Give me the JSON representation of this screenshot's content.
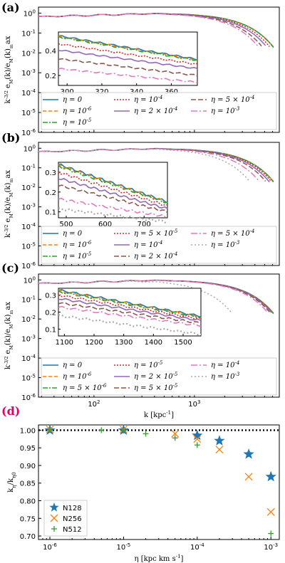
{
  "colors": {
    "eta0": "#1f77b4",
    "eta1": "#ff7f0e",
    "eta2": "#2ca02c",
    "eta3": "#d62728",
    "eta4": "#9467bd",
    "eta5": "#8c564b",
    "eta6": "#e377c2",
    "eta7": "#aaaaaa",
    "panel_d_label": "#e0006a"
  },
  "chart_data": [
    {
      "type": "line",
      "panel_label": "(a)",
      "ylabel": "k^{-3/2} e_M(k)/e_M(k)_max",
      "xscale": "log",
      "yscale": "log",
      "xlim": [
        28,
        7000
      ],
      "ylim": [
        1e-06,
        2
      ],
      "y_ticks": [
        "10^{-6}",
        "10^{-5}",
        "10^{-4}",
        "10^{-3}",
        "10^{-2}",
        "10^{-1}",
        "10^{0}"
      ],
      "legend": [
        "η = 0",
        "η = 10^{-6}",
        "η = 10^{-5}",
        "η = 10^{-4}",
        "η = 2 × 10^{-4}",
        "η = 5 × 10^{-4}",
        "η = 10^{-3}"
      ],
      "series_styles": [
        {
          "color": "eta0",
          "dash": ""
        },
        {
          "color": "eta1",
          "dash": "5,3"
        },
        {
          "color": "eta2",
          "dash": "7,2,2,2"
        },
        {
          "color": "eta3",
          "dash": "2,2"
        },
        {
          "color": "eta4",
          "dash": ""
        },
        {
          "color": "eta5",
          "dash": "7,3"
        },
        {
          "color": "eta6",
          "dash": "9,3,2,3"
        }
      ],
      "cutoffs": [
        6200,
        6200,
        6150,
        5700,
        5300,
        4800,
        4400
      ],
      "inset": {
        "xlim": [
          295,
          375
        ],
        "ylim": [
          0.12,
          0.55
        ],
        "x_ticks": [
          300,
          320,
          340,
          360
        ],
        "y_ticks": [
          0.2,
          0.4
        ],
        "series": [
          [
            0.52,
            0.33
          ],
          [
            0.515,
            0.325
          ],
          [
            0.51,
            0.32
          ],
          [
            0.455,
            0.29
          ],
          [
            0.405,
            0.255
          ],
          [
            0.335,
            0.2
          ],
          [
            0.255,
            0.145
          ]
        ]
      }
    },
    {
      "type": "line",
      "panel_label": "(b)",
      "ylabel": "k^{-3/2} e_M(k)/e_M(k)_max",
      "xscale": "log",
      "yscale": "log",
      "xlim": [
        28,
        7000
      ],
      "ylim": [
        1e-06,
        2
      ],
      "y_ticks": [
        "10^{-6}",
        "10^{-5}",
        "10^{-4}",
        "10^{-3}",
        "10^{-2}",
        "10^{-1}",
        "10^{0}"
      ],
      "legend": [
        "η = 0",
        "η = 10^{-6}",
        "η = 10^{-5}",
        "η = 5 × 10^{-5}",
        "η = 10^{-4}",
        "η = 2 × 10^{-4}",
        "η = 5 × 10^{-4}",
        "η = 10^{-3}"
      ],
      "series_styles": [
        {
          "color": "eta0",
          "dash": ""
        },
        {
          "color": "eta1",
          "dash": "5,3"
        },
        {
          "color": "eta2",
          "dash": "7,2,2,2"
        },
        {
          "color": "eta3",
          "dash": "2,2"
        },
        {
          "color": "eta4",
          "dash": ""
        },
        {
          "color": "eta5",
          "dash": "7,3"
        },
        {
          "color": "eta6",
          "dash": "9,3,2,3"
        },
        {
          "color": "eta7",
          "dash": "2,3"
        }
      ],
      "cutoffs": [
        6200,
        6200,
        6150,
        5900,
        5600,
        5200,
        4500,
        3600
      ],
      "inset": {
        "xlim": [
          480,
          760
        ],
        "ylim": [
          0.07,
          0.35
        ],
        "x_ticks": [
          500,
          600,
          700
        ],
        "y_ticks": [
          0.1,
          0.2,
          0.3
        ],
        "series": [
          [
            0.34,
            0.15
          ],
          [
            0.335,
            0.148
          ],
          [
            0.33,
            0.145
          ],
          [
            0.3,
            0.13
          ],
          [
            0.27,
            0.115
          ],
          [
            0.235,
            0.1
          ],
          [
            0.165,
            0.075
          ],
          [
            0.115,
            0.05
          ]
        ]
      }
    },
    {
      "type": "line",
      "panel_label": "(c)",
      "ylabel": "k^{-3/2} e_M(k)/e_M(k)_max",
      "xlabel": "k [kpc^{-1}]",
      "xscale": "log",
      "yscale": "log",
      "xlim": [
        28,
        7000
      ],
      "ylim": [
        1e-06,
        2
      ],
      "x_ticks": [
        "10^{2}",
        "10^{3}"
      ],
      "y_ticks": [
        "10^{-6}",
        "10^{-5}",
        "10^{-4}",
        "10^{-3}",
        "10^{-2}",
        "10^{-1}",
        "10^{0}"
      ],
      "legend": [
        "η = 0",
        "η = 10^{-6}",
        "η = 5 × 10^{-6}",
        "η = 10^{-5}",
        "η = 2 × 10^{-5}",
        "η = 5 × 10^{-5}",
        "η = 10^{-4}",
        "η = 10^{-3}"
      ],
      "series_styles": [
        {
          "color": "eta0",
          "dash": ""
        },
        {
          "color": "eta1",
          "dash": "5,3"
        },
        {
          "color": "eta2",
          "dash": "7,2,2,2"
        },
        {
          "color": "eta3",
          "dash": "2,2"
        },
        {
          "color": "eta4",
          "dash": ""
        },
        {
          "color": "eta5",
          "dash": "7,3"
        },
        {
          "color": "eta6",
          "dash": "9,3,2,3"
        },
        {
          "color": "eta7",
          "dash": "2,3"
        }
      ],
      "cutoffs": [
        6200,
        6200,
        6150,
        6100,
        6000,
        5800,
        5500,
        2400
      ],
      "inset": {
        "xlim": [
          1080,
          1560
        ],
        "ylim": [
          0.06,
          0.34
        ],
        "x_ticks": [
          1100,
          1200,
          1300,
          1400,
          1500
        ],
        "y_ticks": [
          0.1,
          0.2,
          0.3
        ],
        "series": [
          [
            0.33,
            0.175
          ],
          [
            0.325,
            0.172
          ],
          [
            0.32,
            0.17
          ],
          [
            0.3,
            0.16
          ],
          [
            0.28,
            0.15
          ],
          [
            0.255,
            0.135
          ],
          [
            0.23,
            0.12
          ],
          [
            0.18,
            0.07
          ]
        ]
      }
    },
    {
      "type": "scatter",
      "panel_label": "(d)",
      "ylabel": "k_η/k_{η0}",
      "xlabel": "η [kpc km s^{-1}]",
      "xscale": "log",
      "xlim": [
        7e-07,
        0.0013
      ],
      "ylim": [
        0.69,
        1.015
      ],
      "x_ticks": [
        "10^{-6}",
        "10^{-5}",
        "10^{-4}",
        "10^{-3}"
      ],
      "y_ticks": [
        "0.70",
        "0.75",
        "0.80",
        "0.85",
        "0.90",
        "0.95",
        "1.00"
      ],
      "reference_line": 1.0,
      "series": [
        {
          "name": "N128",
          "marker": "star",
          "color": "eta0",
          "x": [
            1e-06,
            1e-05,
            0.0001,
            0.0002,
            0.0005,
            0.001
          ],
          "y": [
            1.0,
            1.0,
            0.985,
            0.97,
            0.932,
            0.868
          ]
        },
        {
          "name": "N256",
          "marker": "x",
          "color": "eta1",
          "x": [
            1e-06,
            1e-05,
            5e-05,
            0.0001,
            0.0002,
            0.0005,
            0.001
          ],
          "y": [
            1.002,
            1.002,
            0.99,
            0.975,
            0.945,
            0.868,
            0.768
          ]
        },
        {
          "name": "N512",
          "marker": "plus",
          "color": "eta2",
          "x": [
            1e-06,
            5e-06,
            1e-05,
            2e-05,
            5e-05,
            0.0001,
            0.001
          ],
          "y": [
            1.001,
            1.0,
            0.999,
            0.99,
            0.978,
            0.958,
            0.707
          ]
        }
      ]
    }
  ]
}
